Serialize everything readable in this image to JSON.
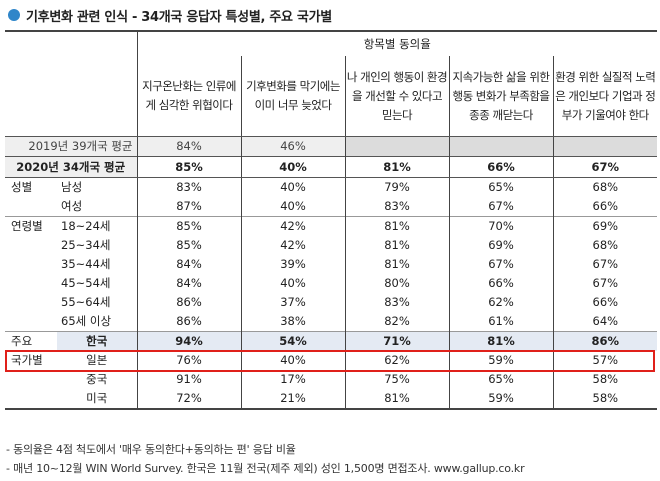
{
  "title": "기후변화 관련 인식 - 34개국 응답자 특성별, 주요 국가별",
  "header": {
    "group_label": "항목별 동의율",
    "questions": [
      "지구온난화는 인류에게 심각한 위협이다",
      "기후변화를 막기에는 이미 너무 늦었다",
      "나 개인의 행동이 환경을 개선할 수 있다고 믿는다",
      "지속가능한 삶을 위한 행동 변화가 부족함을 종종 깨닫는다",
      "환경 위한 실질적 노력은 개인보다 기업과 정부가 기울여야 한다"
    ]
  },
  "rows": {
    "avg2019": {
      "label": "2019년 39개국 평균",
      "values": [
        "84%",
        "46%",
        "",
        "",
        ""
      ]
    },
    "avg2020": {
      "label": "2020년 34개국 평균",
      "values": [
        "85%",
        "40%",
        "81%",
        "66%",
        "67%"
      ]
    },
    "gender": {
      "group": "성별",
      "items": [
        {
          "label": "남성",
          "values": [
            "83%",
            "40%",
            "79%",
            "65%",
            "68%"
          ]
        },
        {
          "label": "여성",
          "values": [
            "87%",
            "40%",
            "83%",
            "67%",
            "66%"
          ]
        }
      ]
    },
    "age": {
      "group": "연령별",
      "items": [
        {
          "label": "18~24세",
          "values": [
            "85%",
            "42%",
            "81%",
            "70%",
            "69%"
          ]
        },
        {
          "label": "25~34세",
          "values": [
            "85%",
            "42%",
            "81%",
            "69%",
            "68%"
          ]
        },
        {
          "label": "35~44세",
          "values": [
            "84%",
            "39%",
            "81%",
            "67%",
            "67%"
          ]
        },
        {
          "label": "45~54세",
          "values": [
            "84%",
            "40%",
            "80%",
            "66%",
            "67%"
          ]
        },
        {
          "label": "55~64세",
          "values": [
            "86%",
            "37%",
            "83%",
            "62%",
            "66%"
          ]
        },
        {
          "label": "65세 이상",
          "values": [
            "86%",
            "38%",
            "82%",
            "61%",
            "64%"
          ]
        }
      ]
    },
    "country": {
      "group_line1": "주요",
      "group_line2": "국가별",
      "items": [
        {
          "label": "한국",
          "values": [
            "94%",
            "54%",
            "71%",
            "81%",
            "86%"
          ]
        },
        {
          "label": "일본",
          "values": [
            "76%",
            "40%",
            "62%",
            "59%",
            "57%"
          ]
        },
        {
          "label": "중국",
          "values": [
            "91%",
            "17%",
            "75%",
            "65%",
            "58%"
          ]
        },
        {
          "label": "미국",
          "values": [
            "72%",
            "21%",
            "81%",
            "59%",
            "58%"
          ]
        }
      ]
    }
  },
  "notes": [
    "- 동의율은 4점 척도에서 '매우 동의한다+동의하는 편' 응답 비율",
    "- 매년 10~12월 WIN World Survey. 한국은 11월 전국(제주 제외) 성인 1,500명 면접조사. www.gallup.co.kr"
  ],
  "colors": {
    "bullet": "#2f86c9",
    "highlight_border": "#e0201a",
    "highlight_fill": "#e4eaf3"
  }
}
